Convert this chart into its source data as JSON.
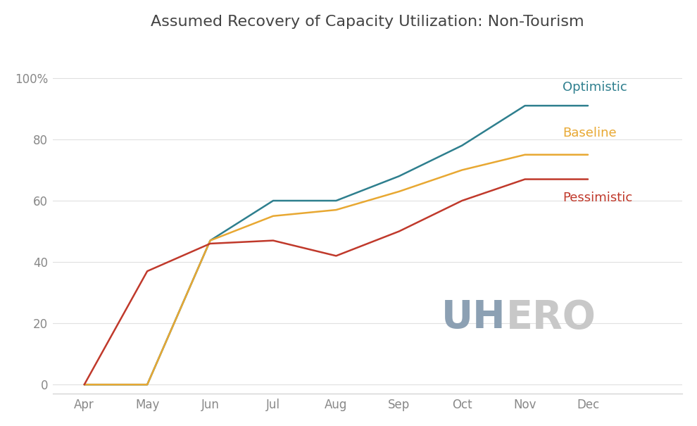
{
  "title": "Assumed Recovery of Capacity Utilization: Non-Tourism",
  "months": [
    "Apr",
    "May",
    "Jun",
    "Jul",
    "Aug",
    "Sep",
    "Oct",
    "Nov",
    "Dec"
  ],
  "optimistic": [
    0,
    0,
    47,
    60,
    60,
    68,
    78,
    91,
    91
  ],
  "baseline": [
    0,
    0,
    47,
    55,
    57,
    63,
    70,
    75,
    75
  ],
  "pessimistic": [
    0,
    37,
    46,
    47,
    42,
    50,
    60,
    67,
    67
  ],
  "optimistic_color": "#2e7f8e",
  "baseline_color": "#e8a832",
  "pessimistic_color": "#c0392b",
  "optimistic_label": "Optimistic",
  "baseline_label": "Baseline",
  "pessimistic_label": "Pessimistic",
  "yticks": [
    0,
    20,
    40,
    60,
    80,
    100
  ],
  "ytick_labels": [
    "0",
    "20",
    "40",
    "60",
    "80",
    "100%"
  ],
  "ylim": [
    -3,
    110
  ],
  "background_color": "#ffffff",
  "title_fontsize": 16,
  "axis_label_fontsize": 12,
  "legend_fontsize": 13,
  "line_width": 1.8,
  "uhero_color_uh": "#8ca0b3",
  "uhero_color_ero": "#c8c8c8",
  "tick_color": "#888888",
  "grid_color": "#e0e0e0"
}
